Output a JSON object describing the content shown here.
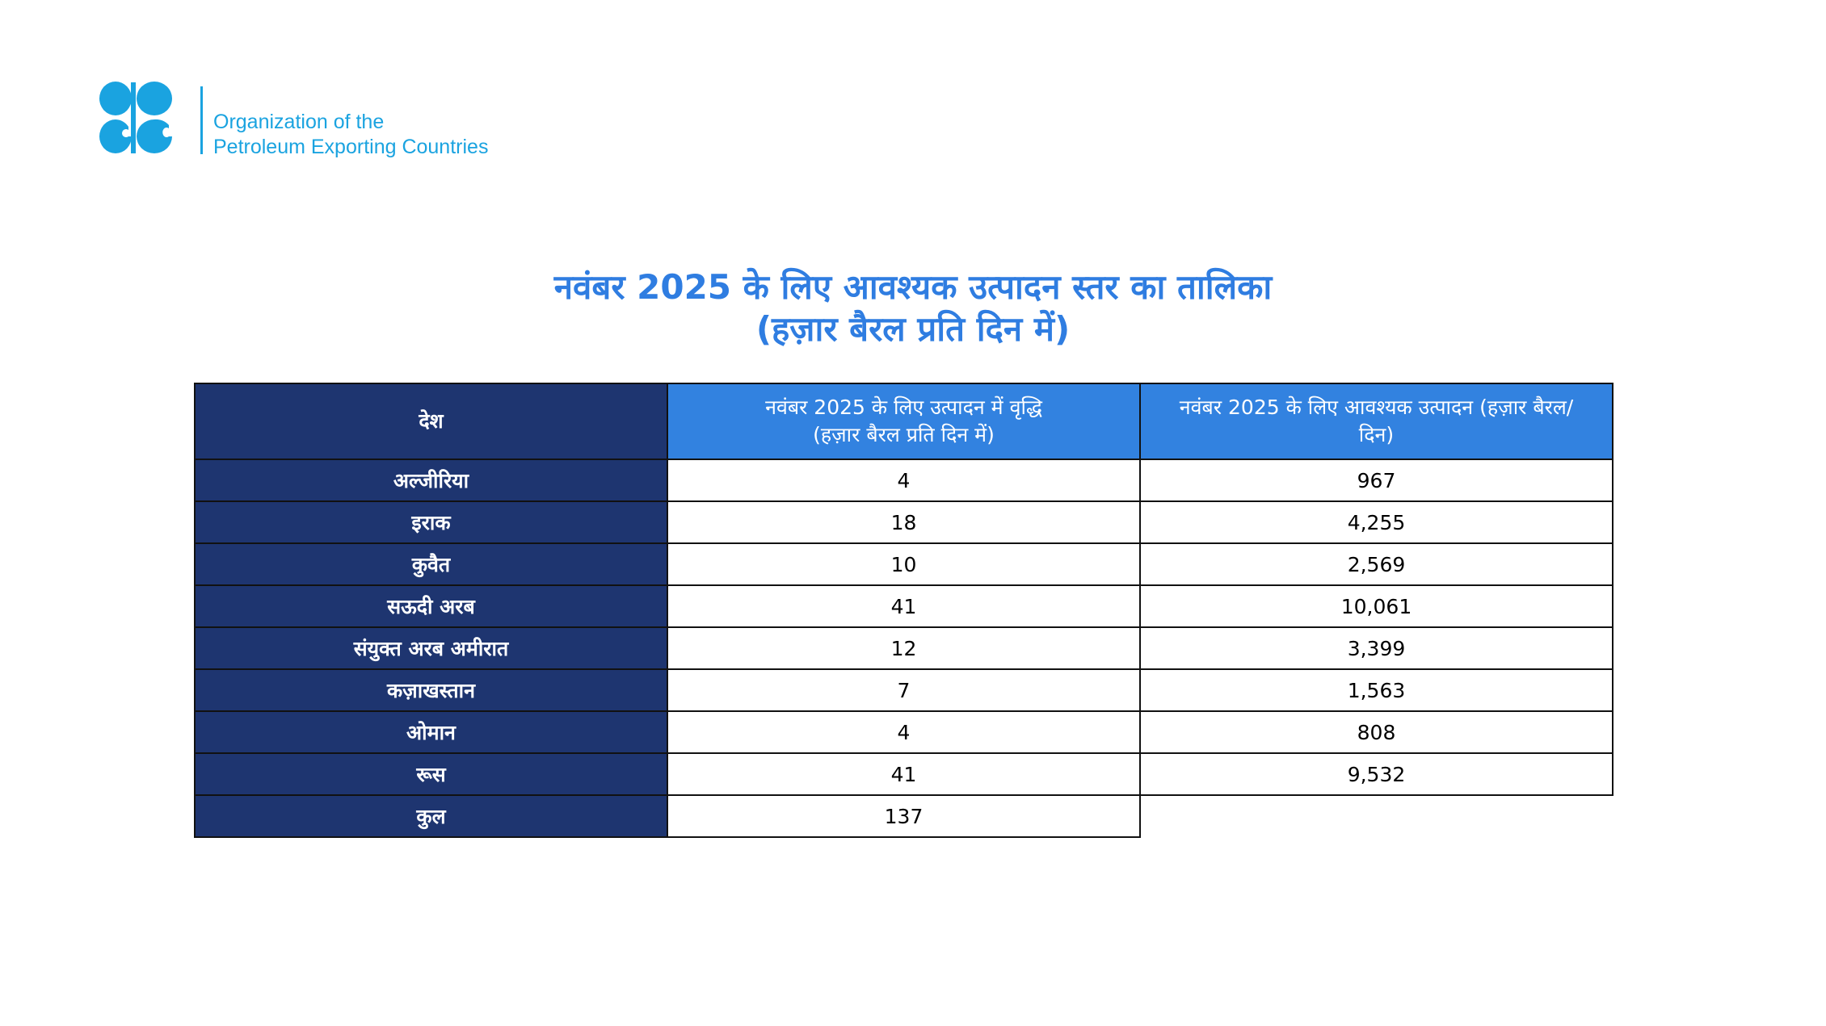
{
  "logo": {
    "line1": "Organization of the",
    "line2": "Petroleum Exporting Countries",
    "color": "#1aa3e0"
  },
  "title": {
    "line1": "नवंबर 2025 के लिए आवश्यक उत्पादन स्तर का तालिका",
    "line2": "(हज़ार बैरल प्रति दिन में)"
  },
  "table": {
    "headers": [
      "देश",
      "नवंबर 2025 के लिए उत्पादन में वृद्धि",
      "(हज़ार बैरल प्रति दिन में)",
      "नवंबर 2025 के लिए आवश्यक उत्पादन (हज़ार बैरल/दिन)"
    ],
    "rows": [
      {
        "country": "अल्जीरिया",
        "increase": "4",
        "required": "967"
      },
      {
        "country": "इराक",
        "increase": "18",
        "required": "4,255"
      },
      {
        "country": "कुवैत",
        "increase": "10",
        "required": "2,569"
      },
      {
        "country": "सऊदी अरब",
        "increase": "41",
        "required": "10,061"
      },
      {
        "country": "संयुक्त अरब अमीरात",
        "increase": "12",
        "required": "3,399"
      },
      {
        "country": "कज़ाखस्तान",
        "increase": "7",
        "required": "1,563"
      },
      {
        "country": "ओमान",
        "increase": "4",
        "required": "808"
      },
      {
        "country": "रूस",
        "increase": "41",
        "required": "9,532"
      }
    ],
    "total": {
      "label": "कुल",
      "increase": "137"
    }
  }
}
